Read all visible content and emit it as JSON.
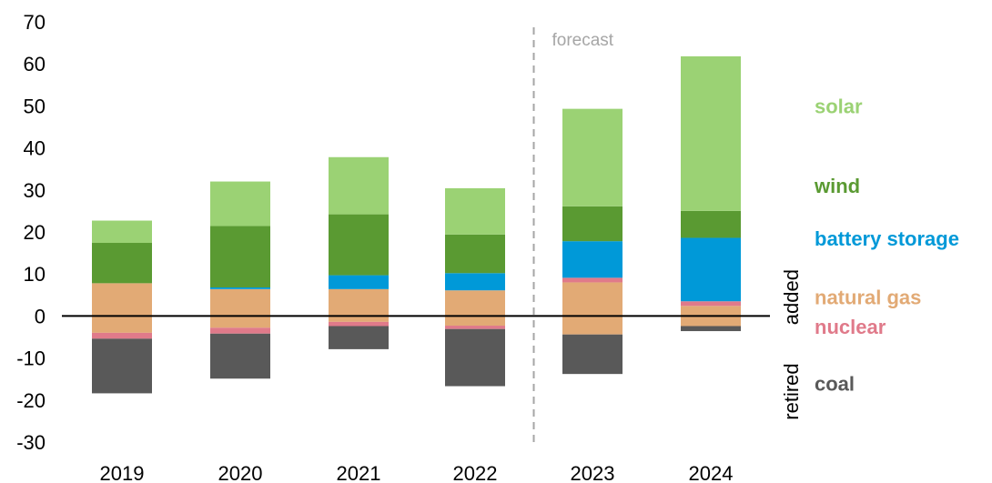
{
  "chart_data": {
    "type": "bar",
    "stacked": true,
    "categories": [
      "2019",
      "2020",
      "2021",
      "2022",
      "2023",
      "2024"
    ],
    "ylim": [
      -30,
      70
    ],
    "yticks": [
      70,
      60,
      50,
      40,
      30,
      20,
      10,
      0,
      -10,
      -20,
      -30
    ],
    "ytick_labels": [
      "70",
      "60",
      "50",
      "40",
      "30",
      "20",
      "10",
      "0",
      "-10",
      "-20",
      "-30"
    ],
    "grid": false,
    "legend_placement": "right",
    "forecast_label": "forecast",
    "forecast_start": "2023",
    "added_label": "added",
    "retired_label": "retired",
    "added_series": [
      {
        "name": "natural gas",
        "color": "#e2aa75",
        "values": [
          7.8,
          6.4,
          6.4,
          6.1,
          8.0,
          2.4
        ]
      },
      {
        "name": "nuclear",
        "color": "#e07a8a",
        "values": [
          0,
          0,
          0,
          0,
          1.1,
          1.1
        ]
      },
      {
        "name": "battery storage",
        "color": "#0099d8",
        "values": [
          0,
          0.4,
          3.3,
          4.1,
          8.7,
          15.1
        ]
      },
      {
        "name": "wind",
        "color": "#5a9a32",
        "values": [
          9.6,
          14.6,
          14.5,
          9.2,
          8.3,
          6.4
        ]
      },
      {
        "name": "solar",
        "color": "#9bd274",
        "values": [
          5.3,
          10.6,
          13.6,
          11.0,
          23.2,
          36.8
        ]
      }
    ],
    "retired_series": [
      {
        "name": "natural gas",
        "color": "#e2aa75",
        "values": [
          -4.0,
          -2.8,
          -1.4,
          -2.3,
          -4.4,
          -2.4
        ]
      },
      {
        "name": "nuclear",
        "color": "#e07a8a",
        "values": [
          -1.4,
          -1.4,
          -1.0,
          -0.8,
          0,
          0
        ]
      },
      {
        "name": "coal",
        "color": "#595959",
        "values": [
          -13.0,
          -10.7,
          -5.5,
          -13.6,
          -9.4,
          -1.2
        ]
      }
    ],
    "legend": [
      {
        "name": "solar",
        "color": "#9bd274",
        "y": 50
      },
      {
        "name": "wind",
        "color": "#5a9a32",
        "y": 31
      },
      {
        "name": "battery storage",
        "color": "#0099d8",
        "y": 18.5
      },
      {
        "name": "natural gas",
        "color": "#e2aa75",
        "y": 4.5
      },
      {
        "name": "nuclear",
        "color": "#e07a8a",
        "y": -2.5
      },
      {
        "name": "coal",
        "color": "#595959",
        "y": -16
      }
    ]
  }
}
